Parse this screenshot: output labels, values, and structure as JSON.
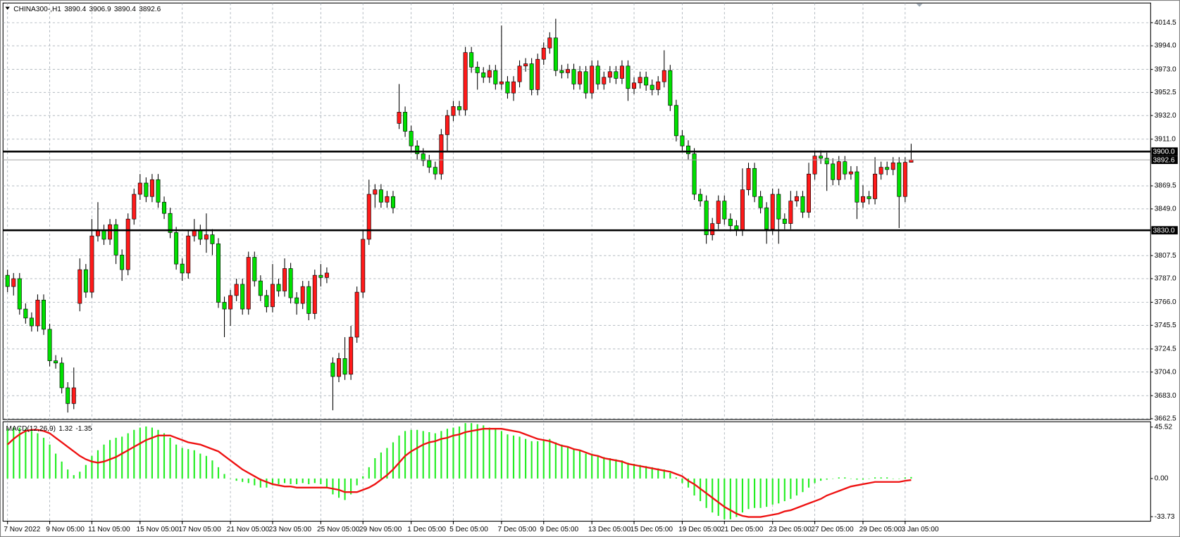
{
  "chart_data": [
    {
      "type": "candlestick",
      "title": "CHINA300-,H1",
      "categories": [
        "7 Nov 2022",
        null,
        null,
        null,
        null,
        null,
        null,
        "9 Nov 05:00",
        null,
        null,
        null,
        null,
        null,
        null,
        "11 Nov 05:00",
        null,
        null,
        null,
        null,
        null,
        null,
        null,
        "15 Nov 05:00",
        null,
        null,
        null,
        null,
        null,
        null,
        "17 Nov 05:00",
        null,
        null,
        null,
        null,
        null,
        null,
        null,
        "21 Nov 05:00",
        null,
        null,
        null,
        null,
        null,
        null,
        "23 Nov 05:00",
        null,
        null,
        null,
        null,
        null,
        null,
        null,
        "25 Nov 05:00",
        null,
        null,
        null,
        null,
        null,
        null,
        "29 Nov 05:00",
        null,
        null,
        null,
        null,
        null,
        null,
        null,
        "1 Dec 05:00",
        null,
        null,
        null,
        null,
        null,
        null,
        "5 Dec 05:00",
        null,
        null,
        null,
        null,
        null,
        null,
        null,
        "7 Dec 05:00",
        null,
        null,
        null,
        null,
        null,
        null,
        "9 Dec 05:00",
        null,
        null,
        null,
        null,
        null,
        null,
        null,
        "13 Dec 05:00",
        null,
        null,
        null,
        null,
        null,
        null,
        "15 Dec 05:00",
        null,
        null,
        null,
        null,
        null,
        null,
        null,
        "19 Dec 05:00",
        null,
        null,
        null,
        null,
        null,
        null,
        "21 Dec 05:00",
        null,
        null,
        null,
        null,
        null,
        null,
        null,
        "23 Dec 05:00",
        null,
        null,
        null,
        null,
        null,
        null,
        "27 Dec 05:00",
        null,
        null,
        null,
        null,
        null,
        null,
        null,
        "29 Dec 05:00",
        null,
        null,
        null,
        null,
        null,
        null,
        "3 Jan 05:00",
        null
      ],
      "open": [
        3790,
        3780,
        3787,
        3760,
        3752,
        3745,
        3768,
        3742,
        3714,
        3712,
        3690,
        3676,
        3765,
        3795,
        3775,
        3825,
        3830,
        3822,
        3835,
        3808,
        3795,
        3840,
        3862,
        3872,
        3860,
        3875,
        3855,
        3845,
        3828,
        3800,
        3792,
        3825,
        3830,
        3822,
        3826,
        3818,
        3766,
        3760,
        3772,
        3782,
        3760,
        3806,
        3785,
        3772,
        3762,
        3782,
        3776,
        3796,
        3770,
        3765,
        3780,
        3756,
        3790,
        3788,
        3712,
        3700,
        3716,
        3702,
        3735,
        3775,
        3822,
        3862,
        3866,
        3855,
        3860,
        3925,
        3935,
        3918,
        3905,
        3898,
        3892,
        3886,
        3880,
        3915,
        3932,
        3940,
        3937,
        3988,
        3975,
        3970,
        3966,
        3972,
        3960,
        3962,
        3952,
        3962,
        3976,
        3978,
        3955,
        3982,
        3992,
        4001,
        3972,
        3970,
        3973,
        3960,
        3971,
        3952,
        3976,
        3960,
        3966,
        3971,
        3965,
        3976,
        3956,
        3961,
        3966,
        3959,
        3955,
        3962,
        3972,
        3941,
        3914,
        3905,
        3898,
        3862,
        3856,
        3826,
        3836,
        3856,
        3840,
        3834,
        3830,
        3866,
        3885,
        3860,
        3850,
        3831,
        3862,
        3840,
        3836,
        3856,
        3860,
        3846,
        3880,
        3896,
        3894,
        3889,
        3875,
        3891,
        3880,
        3882,
        3855,
        3860,
        3858,
        3880,
        3886,
        3884,
        3890,
        3860,
        3890.4
      ],
      "high": [
        3795,
        3792,
        3792,
        3765,
        3757,
        3773,
        3773,
        3747,
        3719,
        3717,
        3695,
        3708,
        3805,
        3800,
        3840,
        3855,
        3835,
        3840,
        3840,
        3813,
        3845,
        3867,
        3880,
        3877,
        3880,
        3880,
        3860,
        3850,
        3833,
        3805,
        3830,
        3840,
        3835,
        3845,
        3831,
        3823,
        3771,
        3777,
        3787,
        3787,
        3811,
        3811,
        3790,
        3777,
        3800,
        3787,
        3805,
        3801,
        3775,
        3785,
        3785,
        3795,
        3800,
        3797,
        3717,
        3721,
        3735,
        3745,
        3780,
        3830,
        3875,
        3871,
        3871,
        3865,
        3865,
        3960,
        3940,
        3923,
        3910,
        3903,
        3897,
        3891,
        3920,
        3937,
        3945,
        3945,
        3993,
        3993,
        3980,
        3975,
        3977,
        3977,
        4012,
        3967,
        3967,
        3981,
        3983,
        3983,
        3987,
        3997,
        4006,
        4018,
        3977,
        3978,
        3978,
        3976,
        3976,
        3981,
        3981,
        3971,
        3976,
        3976,
        3981,
        3981,
        3966,
        3971,
        3971,
        3964,
        3967,
        3990,
        3977,
        3946,
        3919,
        3910,
        3903,
        3867,
        3861,
        3841,
        3861,
        3861,
        3845,
        3839,
        3885,
        3890,
        3890,
        3865,
        3855,
        3867,
        3867,
        3845,
        3865,
        3865,
        3865,
        3890,
        3901,
        3901,
        3899,
        3894,
        3896,
        3896,
        3887,
        3887,
        3870,
        3865,
        3895,
        3891,
        3891,
        3895,
        3895,
        3895,
        3906.9
      ],
      "low": [
        3775,
        3772,
        3755,
        3747,
        3740,
        3740,
        3737,
        3709,
        3707,
        3685,
        3668,
        3671,
        3758,
        3770,
        3770,
        3820,
        3817,
        3817,
        3800,
        3785,
        3790,
        3835,
        3857,
        3855,
        3855,
        3850,
        3840,
        3823,
        3795,
        3785,
        3787,
        3820,
        3817,
        3810,
        3808,
        3761,
        3735,
        3745,
        3767,
        3755,
        3755,
        3780,
        3767,
        3757,
        3757,
        3771,
        3771,
        3765,
        3755,
        3760,
        3750,
        3751,
        3780,
        3783,
        3670,
        3695,
        3697,
        3697,
        3730,
        3770,
        3817,
        3850,
        3850,
        3850,
        3845,
        3920,
        3913,
        3900,
        3893,
        3887,
        3881,
        3875,
        3875,
        3900,
        3927,
        3932,
        3932,
        3970,
        3955,
        3961,
        3961,
        3955,
        3955,
        3947,
        3945,
        3957,
        3971,
        3950,
        3950,
        3977,
        3987,
        3967,
        3965,
        3965,
        3955,
        3955,
        3947,
        3947,
        3955,
        3955,
        3961,
        3960,
        3960,
        3945,
        3951,
        3956,
        3954,
        3950,
        3950,
        3957,
        3936,
        3909,
        3900,
        3893,
        3857,
        3851,
        3818,
        3821,
        3831,
        3835,
        3829,
        3825,
        3825,
        3861,
        3855,
        3845,
        3818,
        3826,
        3818,
        3831,
        3831,
        3851,
        3841,
        3841,
        3875,
        3889,
        3865,
        3870,
        3870,
        3875,
        3875,
        3840,
        3850,
        3853,
        3853,
        3875,
        3879,
        3879,
        3832,
        3855,
        3890.4
      ],
      "close": [
        3780,
        3787,
        3760,
        3752,
        3745,
        3768,
        3742,
        3714,
        3712,
        3690,
        3676,
        3690,
        3795,
        3775,
        3825,
        3830,
        3822,
        3835,
        3808,
        3795,
        3840,
        3862,
        3872,
        3860,
        3875,
        3855,
        3845,
        3828,
        3800,
        3792,
        3825,
        3830,
        3822,
        3826,
        3818,
        3766,
        3760,
        3772,
        3782,
        3760,
        3806,
        3785,
        3772,
        3762,
        3782,
        3776,
        3796,
        3770,
        3765,
        3780,
        3756,
        3790,
        3788,
        3792,
        3700,
        3716,
        3702,
        3735,
        3775,
        3822,
        3862,
        3866,
        3855,
        3860,
        3850,
        3935,
        3918,
        3905,
        3898,
        3892,
        3886,
        3880,
        3915,
        3932,
        3940,
        3937,
        3988,
        3975,
        3970,
        3966,
        3972,
        3960,
        3962,
        3952,
        3962,
        3976,
        3978,
        3955,
        3982,
        3992,
        4001,
        3972,
        3970,
        3973,
        3960,
        3971,
        3952,
        3976,
        3960,
        3966,
        3971,
        3965,
        3976,
        3956,
        3961,
        3966,
        3959,
        3955,
        3962,
        3972,
        3941,
        3914,
        3905,
        3898,
        3862,
        3856,
        3826,
        3836,
        3856,
        3840,
        3834,
        3830,
        3866,
        3885,
        3860,
        3850,
        3831,
        3862,
        3840,
        3836,
        3856,
        3860,
        3846,
        3880,
        3896,
        3894,
        3889,
        3875,
        3891,
        3880,
        3882,
        3855,
        3860,
        3858,
        3880,
        3886,
        3884,
        3890,
        3860,
        3890.4,
        3892.6
      ],
      "up_color": "#ff1a1a",
      "down_color": "#00e000",
      "ylim": [
        3661.8,
        4032.0
      ],
      "yticks": [
        4014.5,
        {
          "value": 3994,
          "label": "3994.0"
        },
        {
          "value": 3973,
          "label": "3973.0"
        },
        3952.5,
        {
          "value": 3932,
          "label": "3932.0"
        },
        {
          "value": 3911,
          "label": "3911.0"
        },
        3869.5,
        {
          "value": 3849,
          "label": "3849.0"
        },
        3807.5,
        {
          "value": 3787,
          "label": "3787.0"
        },
        {
          "value": 3766,
          "label": "3766.0"
        },
        3745.5,
        3724.5,
        {
          "value": 3704,
          "label": "3704.0"
        },
        {
          "value": 3683,
          "label": "3683.0"
        },
        3662.5
      ],
      "hlines": [
        {
          "value": 3900,
          "label": "3900.0"
        },
        {
          "value": 3830,
          "label": "3830.0"
        }
      ],
      "hline_color": "#000000",
      "price_line_color": "#a0a0a0",
      "grid": true
    },
    {
      "type": "macd",
      "title": "MACD(12,26,9)",
      "histogram": {
        "color": "#22ee22",
        "values": [
          44,
          45,
          45,
          44,
          42,
          40,
          36,
          30,
          22,
          15,
          8,
          3,
          6,
          12,
          20,
          25,
          30,
          34,
          36,
          37,
          40,
          43,
          45,
          46,
          45,
          43,
          40,
          36,
          30,
          27,
          26,
          25,
          22,
          20,
          16,
          10,
          4,
          0,
          -2,
          -3,
          -4,
          -6,
          -8,
          -8,
          -6,
          -5,
          -4,
          -5,
          -5,
          -4,
          -5,
          -4,
          -5,
          -8,
          -14,
          -17,
          -19,
          -14,
          -6,
          2,
          10,
          18,
          23,
          27,
          32,
          38,
          42,
          43,
          43,
          42,
          41,
          40,
          42,
          44,
          45,
          46,
          49,
          49,
          48,
          47,
          45,
          44,
          42,
          39,
          38,
          37,
          35,
          33,
          33,
          34,
          35,
          32,
          30,
          28,
          26,
          25,
          22,
          22,
          20,
          19,
          18,
          17,
          16,
          14,
          13,
          12,
          11,
          10,
          9,
          8,
          5,
          1,
          -4,
          -8,
          -15,
          -20,
          -26,
          -30,
          -33,
          -36,
          -36,
          -34,
          -30,
          -27,
          -26,
          -26,
          -25,
          -23,
          -22,
          -20,
          -18,
          -15,
          -12,
          -8,
          -4,
          -2,
          -1,
          0,
          1,
          1,
          0,
          -1,
          -1,
          0,
          1,
          1,
          1,
          0,
          0,
          1,
          1.32
        ]
      },
      "signal": {
        "color": "#ee1111",
        "values": [
          30,
          35,
          39,
          42,
          43,
          43,
          42,
          40,
          36,
          32,
          28,
          24,
          20,
          17,
          15,
          14,
          15,
          17,
          19,
          22,
          25,
          28,
          31,
          34,
          36,
          38,
          38,
          38,
          36,
          34,
          32,
          31,
          30,
          28,
          26,
          24,
          20,
          16,
          12,
          8,
          5,
          2,
          -1,
          -3,
          -5,
          -6,
          -7,
          -7,
          -8,
          -8,
          -8,
          -8,
          -8,
          -8,
          -9,
          -10,
          -12,
          -12,
          -12,
          -10,
          -8,
          -5,
          -1,
          3,
          8,
          14,
          20,
          24,
          27,
          30,
          32,
          33,
          35,
          36,
          38,
          39,
          41,
          42,
          43,
          44,
          44,
          44,
          44,
          43,
          42,
          41,
          39,
          37,
          35,
          34,
          33,
          31,
          29,
          28,
          26,
          25,
          23,
          21,
          20,
          18,
          17,
          16,
          15,
          13,
          12,
          11,
          10,
          9,
          8,
          7,
          6,
          4,
          2,
          -2,
          -5,
          -9,
          -13,
          -17,
          -21,
          -25,
          -28,
          -31,
          -33,
          -34,
          -34,
          -34,
          -33,
          -32,
          -31,
          -29,
          -28,
          -26,
          -24,
          -22,
          -20,
          -18,
          -15,
          -13,
          -11,
          -9,
          -7,
          -6,
          -5,
          -4,
          -3,
          -3,
          -3,
          -3,
          -3,
          -2,
          -1.35
        ]
      },
      "ylim": [
        -37.7,
        49.5
      ],
      "yticks": [
        45.52,
        {
          "value": 0,
          "label": "0.00"
        },
        -33.73
      ]
    }
  ]
}
